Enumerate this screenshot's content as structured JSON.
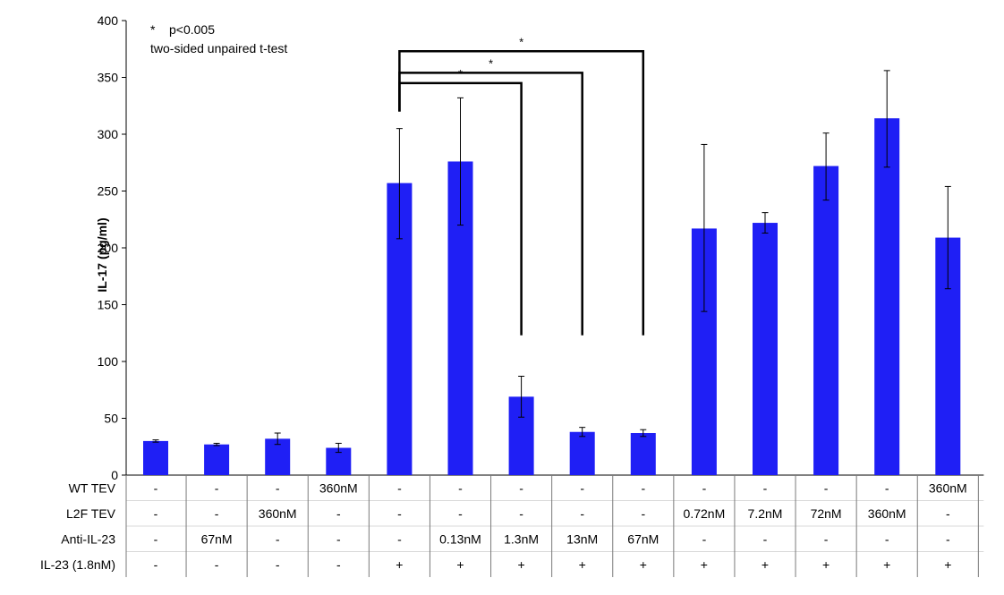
{
  "chart_data": {
    "type": "bar",
    "ylabel": "IL-17 (pg/ml)",
    "ylim": [
      0,
      400
    ],
    "yticks": [
      0,
      50,
      100,
      150,
      200,
      250,
      300,
      350,
      400
    ],
    "grid": false,
    "bar_color": "#1f1ff5",
    "values": [
      30,
      27,
      32,
      24,
      257,
      276,
      69,
      38,
      37,
      217,
      222,
      272,
      314,
      209
    ],
    "error_low": [
      29,
      26,
      27,
      20,
      208,
      220,
      51,
      34,
      34,
      144,
      213,
      242,
      271,
      164
    ],
    "error_high": [
      31,
      28,
      37,
      28,
      305,
      332,
      87,
      42,
      40,
      291,
      231,
      301,
      356,
      254
    ],
    "conditions": [
      {
        "name": "WT TEV",
        "values": [
          "-",
          "-",
          "-",
          "360nM",
          "-",
          "-",
          "-",
          "-",
          "-",
          "-",
          "-",
          "-",
          "-",
          "360nM"
        ]
      },
      {
        "name": "L2F TEV",
        "values": [
          "-",
          "-",
          "360nM",
          "-",
          "-",
          "-",
          "-",
          "-",
          "-",
          "0.72nM",
          "7.2nM",
          "72nM",
          "360nM",
          "-"
        ]
      },
      {
        "name": "Anti-IL-23",
        "values": [
          "-",
          "67nM",
          "-",
          "-",
          "-",
          "0.13nM",
          "1.3nM",
          "13nM",
          "67nM",
          "-",
          "-",
          "-",
          "-",
          "-"
        ]
      },
      {
        "name": "IL-23 (1.8nM)",
        "values": [
          "-",
          "-",
          "-",
          "-",
          "+",
          "+",
          "+",
          "+",
          "+",
          "+",
          "+",
          "+",
          "+",
          "+"
        ]
      }
    ],
    "annotations": {
      "legend_line1": "*    p<0.005",
      "legend_line2": "two-sided unpaired t-test",
      "significance": [
        {
          "from": 4,
          "to": 6,
          "label": "*",
          "level": 345
        },
        {
          "from": 4,
          "to": 7,
          "label": "*",
          "level": 354
        },
        {
          "from": 4,
          "to": 8,
          "label": "*",
          "level": 373
        }
      ]
    }
  }
}
